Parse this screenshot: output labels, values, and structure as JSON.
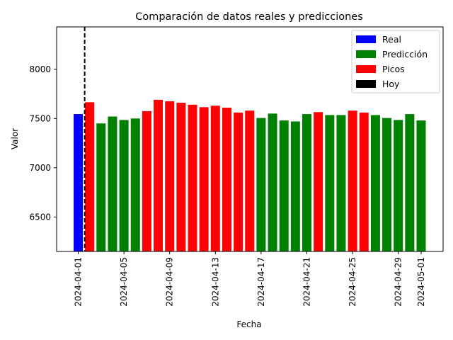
{
  "chart_data": {
    "type": "bar",
    "title": "Comparación de datos reales y predicciones",
    "xlabel": "Fecha",
    "ylabel": "Valor",
    "ylim": [
      6150,
      8430
    ],
    "yticks": [
      6500,
      7000,
      7500,
      8000
    ],
    "xticks": [
      "2024-04-01",
      "2024-04-05",
      "2024-04-09",
      "2024-04-13",
      "2024-04-17",
      "2024-04-21",
      "2024-04-25",
      "2024-04-29",
      "2024-05-01"
    ],
    "today": "2024-04-02",
    "legend_position": "top-right",
    "legend": [
      {
        "label": "Real",
        "color": "#0000ff"
      },
      {
        "label": "Predicción",
        "color": "#008000"
      },
      {
        "label": "Picos",
        "color": "#ff0000"
      },
      {
        "label": "Hoy",
        "color": "#000000"
      }
    ],
    "colors": {
      "real": "#0000ff",
      "prediccion": "#008000",
      "picos": "#ff0000",
      "hoy": "#000000"
    },
    "bars": [
      {
        "date": "2024-04-01",
        "value": 7545,
        "kind": "real"
      },
      {
        "date": "2024-04-02",
        "value": 7665,
        "kind": "picos"
      },
      {
        "date": "2024-04-03",
        "value": 7450,
        "kind": "prediccion"
      },
      {
        "date": "2024-04-04",
        "value": 7520,
        "kind": "prediccion"
      },
      {
        "date": "2024-04-05",
        "value": 7485,
        "kind": "prediccion"
      },
      {
        "date": "2024-04-06",
        "value": 7500,
        "kind": "prediccion"
      },
      {
        "date": "2024-04-07",
        "value": 7575,
        "kind": "picos"
      },
      {
        "date": "2024-04-08",
        "value": 7690,
        "kind": "picos"
      },
      {
        "date": "2024-04-09",
        "value": 7675,
        "kind": "picos"
      },
      {
        "date": "2024-04-10",
        "value": 7660,
        "kind": "picos"
      },
      {
        "date": "2024-04-11",
        "value": 7640,
        "kind": "picos"
      },
      {
        "date": "2024-04-12",
        "value": 7615,
        "kind": "picos"
      },
      {
        "date": "2024-04-13",
        "value": 7630,
        "kind": "picos"
      },
      {
        "date": "2024-04-14",
        "value": 7610,
        "kind": "picos"
      },
      {
        "date": "2024-04-15",
        "value": 7560,
        "kind": "picos"
      },
      {
        "date": "2024-04-16",
        "value": 7580,
        "kind": "picos"
      },
      {
        "date": "2024-04-17",
        "value": 7505,
        "kind": "prediccion"
      },
      {
        "date": "2024-04-18",
        "value": 7550,
        "kind": "prediccion"
      },
      {
        "date": "2024-04-19",
        "value": 7480,
        "kind": "prediccion"
      },
      {
        "date": "2024-04-20",
        "value": 7470,
        "kind": "prediccion"
      },
      {
        "date": "2024-04-21",
        "value": 7545,
        "kind": "prediccion"
      },
      {
        "date": "2024-04-22",
        "value": 7565,
        "kind": "picos"
      },
      {
        "date": "2024-04-23",
        "value": 7535,
        "kind": "prediccion"
      },
      {
        "date": "2024-04-24",
        "value": 7535,
        "kind": "prediccion"
      },
      {
        "date": "2024-04-25",
        "value": 7580,
        "kind": "picos"
      },
      {
        "date": "2024-04-26",
        "value": 7560,
        "kind": "picos"
      },
      {
        "date": "2024-04-27",
        "value": 7535,
        "kind": "prediccion"
      },
      {
        "date": "2024-04-28",
        "value": 7505,
        "kind": "prediccion"
      },
      {
        "date": "2024-04-29",
        "value": 7485,
        "kind": "prediccion"
      },
      {
        "date": "2024-04-30",
        "value": 7545,
        "kind": "prediccion"
      },
      {
        "date": "2024-05-01",
        "value": 7480,
        "kind": "prediccion"
      }
    ]
  }
}
